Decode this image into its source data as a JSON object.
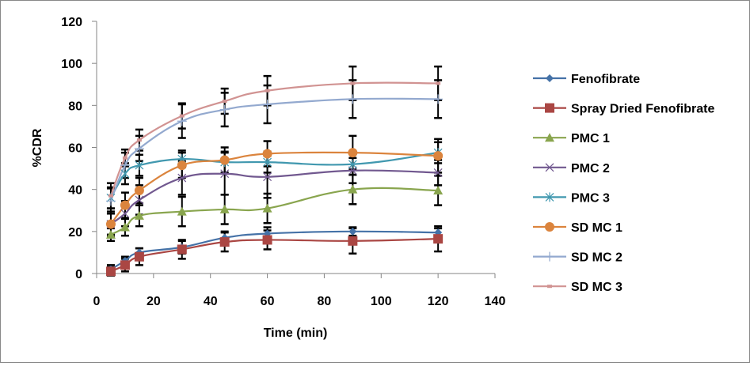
{
  "chart_data": {
    "type": "line",
    "title": "",
    "xlabel": "Time (min)",
    "ylabel": "%CDR",
    "xlim": [
      0,
      140
    ],
    "ylim": [
      0,
      120
    ],
    "xticks": [
      0,
      20,
      40,
      60,
      80,
      100,
      120,
      140
    ],
    "yticks": [
      0,
      20,
      40,
      60,
      80,
      100,
      120
    ],
    "grid": false,
    "legend_position": "right",
    "x": [
      5,
      10,
      15,
      30,
      45,
      60,
      90,
      120
    ],
    "series": [
      {
        "name": "Fenofibrate",
        "color": "#4572a7",
        "marker": "diamond",
        "values": [
          2,
          6,
          10,
          12.5,
          17,
          19,
          20,
          19.5
        ],
        "errors": [
          2,
          2,
          2,
          3,
          3,
          3,
          2,
          2
        ]
      },
      {
        "name": "Spray Dried Fenofibrate",
        "color": "#aa4643",
        "marker": "square",
        "values": [
          1,
          4,
          8,
          11.5,
          15,
          16,
          15.5,
          16.5
        ],
        "errors": [
          2,
          3,
          4,
          4.5,
          4.5,
          4.5,
          6,
          6
        ]
      },
      {
        "name": "PMC 1",
        "color": "#89a54e",
        "marker": "triangle",
        "values": [
          18.5,
          22,
          27.5,
          29.5,
          30.5,
          31,
          40,
          39.5
        ],
        "errors": [
          3,
          4,
          5,
          7,
          7,
          7,
          7,
          7
        ]
      },
      {
        "name": "PMC 2",
        "color": "#71588f",
        "marker": "x",
        "values": [
          23.5,
          28.5,
          35,
          45.5,
          47.5,
          46,
          49,
          48
        ],
        "errors": [
          5,
          6,
          7,
          8,
          10,
          10,
          6,
          6
        ]
      },
      {
        "name": "PMC 3",
        "color": "#4198af",
        "marker": "asterisk",
        "values": [
          36,
          47.5,
          51.5,
          54.5,
          53,
          53,
          52,
          57.5
        ],
        "errors": [
          5,
          5,
          5,
          4,
          5,
          5,
          5,
          5
        ]
      },
      {
        "name": "SD MC 1",
        "color": "#db843d",
        "marker": "circle",
        "values": [
          23.5,
          32.5,
          39.5,
          51.5,
          54,
          57,
          57.5,
          56
        ],
        "errors": [
          6,
          6,
          6,
          6,
          6,
          6,
          8,
          8
        ]
      },
      {
        "name": "SD MC 2",
        "color": "#93a9cf",
        "marker": "plus",
        "values": [
          34.5,
          51.5,
          59.5,
          72.5,
          78,
          80.5,
          83,
          83
        ],
        "errors": [
          6,
          6,
          6,
          8,
          8,
          9,
          9,
          9
        ]
      },
      {
        "name": "SD MC 3",
        "color": "#d19392",
        "marker": "dash",
        "values": [
          37,
          55,
          63.5,
          75,
          82,
          87,
          90.5,
          90.5
        ],
        "errors": [
          6,
          4,
          5,
          6,
          6,
          7,
          8,
          8
        ]
      }
    ]
  }
}
